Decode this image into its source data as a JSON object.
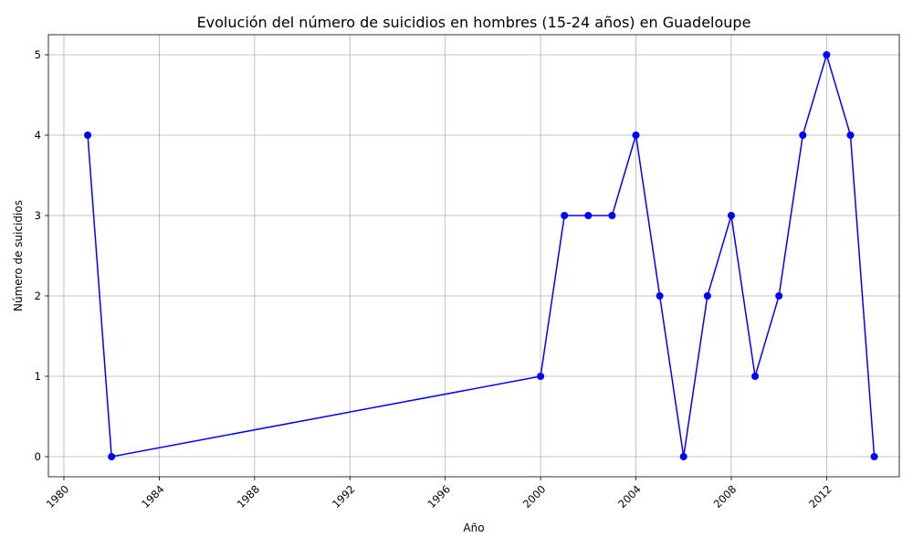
{
  "chart_data": {
    "type": "line",
    "title": "Evolución del número de suicidios en hombres (15-24 años) en Guadeloupe",
    "xlabel": "Año",
    "ylabel": "Número de suicidios",
    "x": [
      1981,
      1982,
      2000,
      2001,
      2002,
      2003,
      2004,
      2005,
      2006,
      2007,
      2008,
      2009,
      2010,
      2011,
      2012,
      2013,
      2014
    ],
    "series": [
      {
        "values": [
          4,
          0,
          1,
          3,
          3,
          3,
          4,
          2,
          0,
          2,
          3,
          1,
          2,
          4,
          5,
          4,
          0
        ]
      }
    ],
    "xlim": [
      1979.35,
      2015.05
    ],
    "ylim": [
      -0.25,
      5.25
    ],
    "xticks": [
      "1980",
      "1984",
      "1988",
      "1992",
      "1996",
      "2000",
      "2004",
      "2008",
      "2012"
    ],
    "yticks": [
      "0",
      "1",
      "2",
      "3",
      "4",
      "5"
    ],
    "grid": true,
    "legend": "none",
    "color": "#0000ff"
  }
}
